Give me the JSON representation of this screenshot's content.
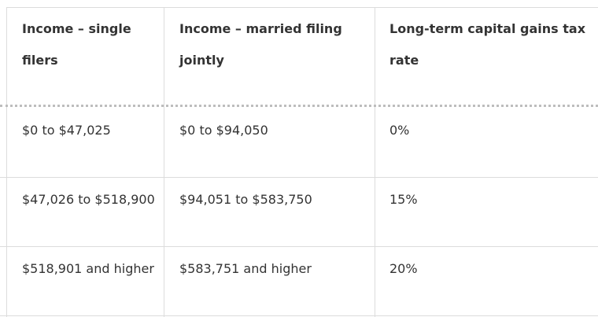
{
  "table": {
    "headers": [
      {
        "line1": "Income – single",
        "line2": "filers"
      },
      {
        "line1": "Income – married filing",
        "line2": "jointly"
      },
      {
        "line1": "Long-term capital gains tax",
        "line2": "rate"
      }
    ],
    "rows": [
      [
        "$0 to $47,025",
        "$0 to $94,050",
        "0%"
      ],
      [
        "$47,026 to $518,900",
        "$94,051 to $583,750",
        "15%"
      ],
      [
        "$518,901 and higher",
        "$583,751 and higher",
        "20%"
      ]
    ]
  }
}
